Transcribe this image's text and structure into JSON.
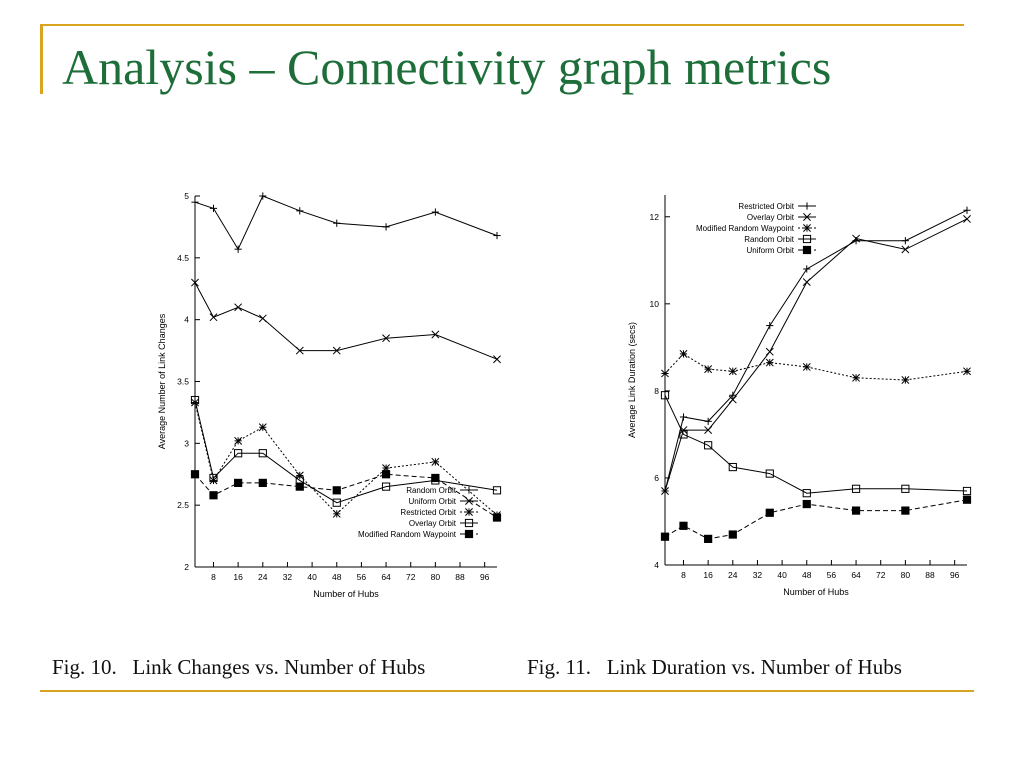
{
  "slide": {
    "title": "Analysis – Connectivity graph metrics",
    "accent_color": "#d9a521",
    "title_color": "#1e6e3a",
    "captions": [
      "Fig. 10.   Link Changes vs. Number of Hubs",
      "Fig. 11.   Link Duration vs. Number of Hubs"
    ]
  },
  "chart_data": [
    {
      "type": "line",
      "title": "",
      "xlabel": "Number of Hubs",
      "ylabel": "Average Number of Link Changes",
      "xlim": [
        2,
        100
      ],
      "ylim": [
        2,
        5
      ],
      "xticks": [
        8,
        16,
        24,
        32,
        40,
        48,
        56,
        64,
        72,
        80,
        88,
        96
      ],
      "yticks": [
        2,
        2.5,
        3,
        3.5,
        4,
        4.5,
        5
      ],
      "x": [
        2,
        8,
        16,
        24,
        36,
        48,
        64,
        80,
        100
      ],
      "legend": "bottom-right",
      "grid": false,
      "series": [
        {
          "name": "Random Orbit",
          "marker": "plus",
          "dash": "solid",
          "values": [
            4.95,
            4.9,
            4.57,
            5.0,
            4.88,
            4.78,
            4.75,
            4.87,
            4.68
          ]
        },
        {
          "name": "Uniform Orbit",
          "marker": "x",
          "dash": "solid",
          "values": [
            4.3,
            4.02,
            4.1,
            4.01,
            3.75,
            3.75,
            3.85,
            3.88,
            3.68
          ]
        },
        {
          "name": "Restricted Orbit",
          "marker": "star",
          "dash": "dotted",
          "values": [
            3.33,
            2.7,
            3.02,
            3.13,
            2.74,
            2.43,
            2.8,
            2.85,
            2.42
          ]
        },
        {
          "name": "Overlay Orbit",
          "marker": "square",
          "dash": "solid",
          "values": [
            3.35,
            2.72,
            2.92,
            2.92,
            2.7,
            2.52,
            2.65,
            2.7,
            2.62
          ]
        },
        {
          "name": "Modified Random Waypoint",
          "marker": "filled-square",
          "dash": "dashed",
          "values": [
            2.75,
            2.58,
            2.68,
            2.68,
            2.65,
            2.62,
            2.75,
            2.72,
            2.4
          ]
        }
      ]
    },
    {
      "type": "line",
      "title": "",
      "xlabel": "Number of Hubs",
      "ylabel": "Average Link Duration (secs)",
      "xlim": [
        2,
        100
      ],
      "ylim": [
        4,
        12.5
      ],
      "xticks": [
        8,
        16,
        24,
        32,
        40,
        48,
        56,
        64,
        72,
        80,
        88,
        96
      ],
      "yticks": [
        4,
        6,
        8,
        10,
        12
      ],
      "x": [
        2,
        8,
        16,
        24,
        36,
        48,
        64,
        80,
        100
      ],
      "legend": "top-left",
      "grid": false,
      "series": [
        {
          "name": "Restricted Orbit",
          "marker": "plus",
          "dash": "solid",
          "values": [
            5.7,
            7.4,
            7.3,
            7.9,
            9.5,
            10.8,
            11.45,
            11.45,
            12.15
          ]
        },
        {
          "name": "Overlay Orbit",
          "marker": "x",
          "dash": "solid",
          "values": [
            5.7,
            7.1,
            7.1,
            7.8,
            8.9,
            10.5,
            11.5,
            11.25,
            11.95
          ]
        },
        {
          "name": "Modified Random Waypoint",
          "marker": "star",
          "dash": "dotted",
          "values": [
            8.4,
            8.85,
            8.5,
            8.45,
            8.65,
            8.55,
            8.3,
            8.25,
            8.45
          ]
        },
        {
          "name": "Random Orbit",
          "marker": "square",
          "dash": "solid",
          "values": [
            7.9,
            7.0,
            6.75,
            6.25,
            6.1,
            5.65,
            5.75,
            5.75,
            5.7
          ]
        },
        {
          "name": "Uniform Orbit",
          "marker": "filled-square",
          "dash": "dashed",
          "values": [
            4.65,
            4.9,
            4.6,
            4.7,
            5.2,
            5.4,
            5.25,
            5.25,
            5.5
          ]
        }
      ]
    }
  ]
}
